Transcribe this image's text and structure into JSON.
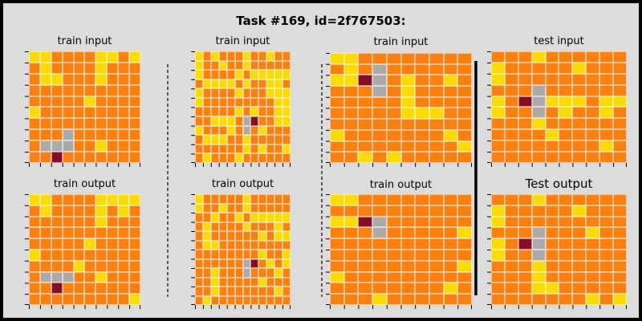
{
  "title": "Task #169, id=2f767503:",
  "colors": {
    "0": "#000000",
    "2": "#ff7f0e",
    "4": "#fcdc00",
    "5": "#aaaaaa",
    "7": "#870c25"
  },
  "panels": [
    {
      "id": "train-1-input",
      "label": "train input",
      "rows": [
        "4422224424",
        "2422224222",
        "2442224222",
        "2222222222",
        "2222242222",
        "4222222222",
        "2222222222",
        "2225222222",
        "2555224222",
        "2272222222"
      ]
    },
    {
      "id": "train-1-output",
      "label": "train output",
      "rows": [
        "4422224444",
        "2422224242",
        "2222224222",
        "2222222222",
        "2222242222",
        "4222222222",
        "2222422222",
        "2555224222",
        "2272222222",
        "2222222224"
      ]
    },
    {
      "id": "train-2-input",
      "label": "train input",
      "rows": [
        "424222422422",
        "422422422222",
        "422224244444",
        "244442422442",
        "422224222444",
        "422222222244",
        "222224242244",
        "224442572244",
        "422242524222",
        "244422422222",
        "222222424224",
        "242224222222"
      ]
    },
    {
      "id": "train-2-output",
      "label": "train output",
      "rows": [
        "422222422222",
        "422422422222",
        "224224244444",
        "242222422242",
        "242222224244",
        "244222222222",
        "222222224224",
        "222222572424",
        "224222522242",
        "224222224222",
        "224222222242",
        "242222222222"
      ]
    },
    {
      "id": "train-3-input",
      "label": "train input",
      "rows": [
        "4422222222",
        "2425222222",
        "4475242242",
        "2225242222",
        "2222242222",
        "2222244422",
        "2222222222",
        "4222222242",
        "2222222224",
        "2242422222"
      ]
    },
    {
      "id": "train-3-output",
      "label": "train output",
      "rows": [
        "4422222222",
        "2222222222",
        "4475222222",
        "2225222224",
        "2222222222",
        "2222222222",
        "2222222224",
        "4222222222",
        "2222222242",
        "2224222222"
      ]
    },
    {
      "id": "test-input",
      "label": "test input",
      "rows": [
        "2224222222",
        "4222224222",
        "4222222222",
        "2225222222",
        "4275444244",
        "4225242242",
        "2224222222",
        "2222422222",
        "2222222242",
        "2222222222"
      ]
    },
    {
      "id": "test-output",
      "label": "Test output",
      "rows": [
        "2224222222",
        "4222224222",
        "4222222222",
        "2225222422",
        "4275222222",
        "4225222222",
        "2224222222",
        "2224222222",
        "2224422222",
        "2222222424"
      ]
    }
  ]
}
